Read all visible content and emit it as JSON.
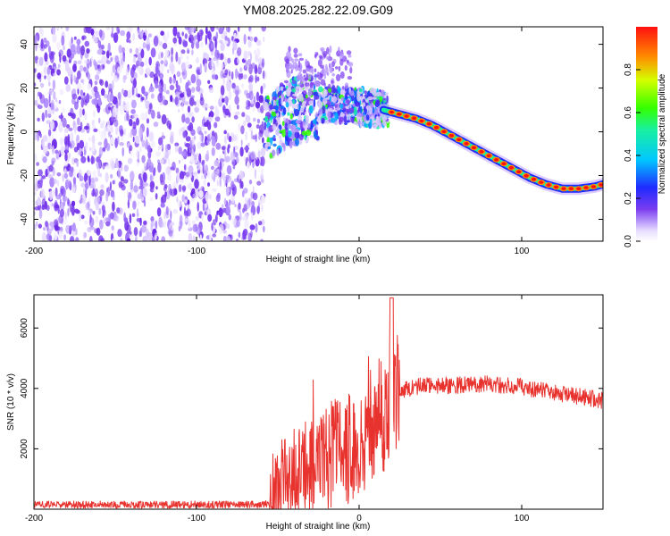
{
  "title": "YM08.2025.282.22.09.G09",
  "colors": {
    "trace": "#e8322e",
    "axis": "#000000",
    "noise": "#7a3cf0"
  },
  "chart_data": [
    {
      "type": "heatmap",
      "xlabel": "Height of straight line (km)",
      "ylabel": "Frequency (Hz)",
      "xlim": [
        -200,
        150
      ],
      "ylim": [
        -50,
        48
      ],
      "xticks": [
        "-200",
        "-100",
        "0",
        "100"
      ],
      "yticks": [
        "40",
        "20",
        "0",
        "-20",
        "-40"
      ],
      "colorbar": {
        "label": "Normalized spectral amplitude",
        "range": [
          0,
          1
        ],
        "ticks": [
          "0.0",
          "0.2",
          "0.4",
          "0.6",
          "0.8"
        ]
      },
      "noise_region_x": [
        -200,
        -58
      ],
      "ridge": {
        "x": [
          -55,
          -45,
          -35,
          -25,
          -15,
          -5,
          5,
          15,
          25,
          35,
          45,
          55,
          65,
          75,
          85,
          95,
          105,
          115,
          125,
          135,
          145,
          150
        ],
        "freq": [
          3,
          8,
          11,
          12,
          12,
          12,
          11,
          10,
          8,
          6,
          3,
          -1,
          -5,
          -9,
          -13,
          -17,
          -21,
          -24,
          -26,
          -26,
          -25,
          -24
        ]
      }
    },
    {
      "type": "line",
      "xlabel": "Height of straight line (km)",
      "ylabel": "SNR (10 * v/v)",
      "xlim": [
        -200,
        150
      ],
      "ylim": [
        0,
        7100
      ],
      "xticks": [
        "-200",
        "-100",
        "0",
        "100"
      ],
      "yticks": [
        "2000",
        "4000",
        "6000"
      ],
      "series": [
        {
          "name": "SNR",
          "x": [
            -200,
            -150,
            -100,
            -60,
            -55,
            -50,
            -40,
            -30,
            -20,
            -10,
            0,
            10,
            20,
            25,
            30,
            40,
            60,
            80,
            100,
            120,
            140,
            150
          ],
          "y": [
            150,
            150,
            150,
            150,
            200,
            900,
            1100,
            1400,
            1800,
            2000,
            2200,
            2800,
            3600,
            3900,
            4000,
            4100,
            4100,
            4150,
            4050,
            3850,
            3700,
            3600
          ]
        }
      ]
    }
  ]
}
